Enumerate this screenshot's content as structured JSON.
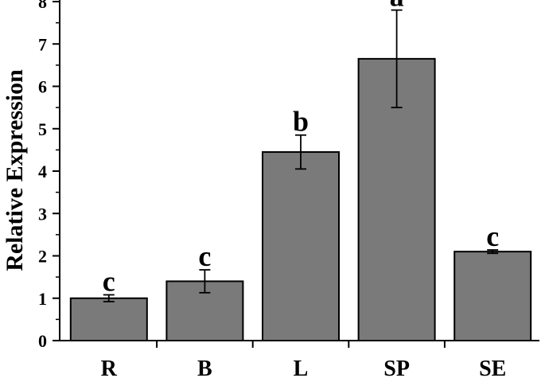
{
  "chart_data": {
    "type": "bar",
    "title": "",
    "xlabel": "",
    "ylabel": "Relative Expression",
    "ylim": [
      0,
      8
    ],
    "yticks": [
      0,
      1,
      2,
      3,
      4,
      5,
      6,
      7,
      8
    ],
    "grid": false,
    "legend": "none",
    "categories": [
      "R",
      "B",
      "L",
      "SP",
      "SE"
    ],
    "values": [
      1.0,
      1.4,
      4.45,
      6.65,
      2.1
    ],
    "errors": [
      0.08,
      0.27,
      0.4,
      1.15,
      0.04
    ],
    "significance": [
      "c",
      "c",
      "b",
      "a",
      "c"
    ],
    "colors": {
      "bar": "#7a7a7a",
      "edge": "#000000",
      "axis": "#000000"
    }
  }
}
